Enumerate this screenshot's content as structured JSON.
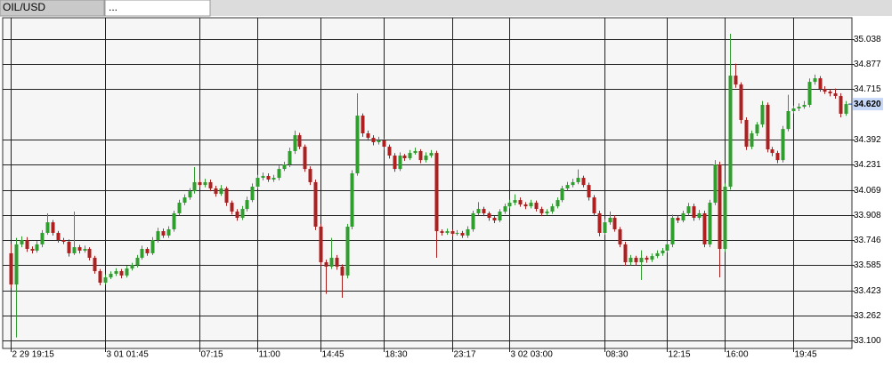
{
  "tabs": [
    "OIL/USD",
    "..."
  ],
  "chart_data": {
    "type": "candlestick",
    "up_color": "#2f9e2f",
    "down_color": "#ae1f1f",
    "grid": true,
    "ylim": [
      33.049,
      35.175
    ],
    "yticks": [
      35.038,
      34.877,
      34.715,
      34.392,
      34.231,
      34.069,
      33.908,
      33.746,
      33.585,
      33.423,
      33.262,
      {
        "value": 33.1,
        "label": "33.100"
      }
    ],
    "xticks": [
      {
        "value": 0,
        "label": "2 29 19:15"
      },
      {
        "value": 18,
        "label": "3 01 01:45"
      },
      {
        "value": 36,
        "label": "07:15"
      },
      {
        "value": 47,
        "label": "11:00"
      },
      {
        "value": 59,
        "label": "14:45"
      },
      {
        "value": 71,
        "label": "18:30"
      },
      {
        "value": 84,
        "label": "23:17"
      },
      {
        "value": 95,
        "label": "3 02 03:00"
      },
      {
        "value": 113,
        "label": "08:30"
      },
      {
        "value": 125,
        "label": "12:15"
      },
      {
        "value": 136,
        "label": "16:00"
      },
      {
        "value": 149,
        "label": "19:45"
      }
    ],
    "last_price": {
      "value": 34.62,
      "label": "34.620"
    },
    "ohlc": [
      [
        33.661,
        33.72,
        33.44,
        33.46
      ],
      [
        33.46,
        33.76,
        33.12,
        33.718
      ],
      [
        33.718,
        33.77,
        33.7,
        33.746
      ],
      [
        33.746,
        33.765,
        33.67,
        33.689
      ],
      [
        33.689,
        33.705,
        33.66,
        33.678
      ],
      [
        33.678,
        33.74,
        33.665,
        33.718
      ],
      [
        33.718,
        33.81,
        33.7,
        33.792
      ],
      [
        33.792,
        33.918,
        33.78,
        33.86
      ],
      [
        33.86,
        33.875,
        33.775,
        33.792
      ],
      [
        33.792,
        33.805,
        33.73,
        33.746
      ],
      [
        33.746,
        33.76,
        33.72,
        33.735
      ],
      [
        33.735,
        33.75,
        33.64,
        33.661
      ],
      [
        33.661,
        33.929,
        33.65,
        33.7
      ],
      [
        33.7,
        33.715,
        33.66,
        33.678
      ],
      [
        33.678,
        33.71,
        33.665,
        33.689
      ],
      [
        33.689,
        33.7,
        33.615,
        33.632
      ],
      [
        33.632,
        33.645,
        33.53,
        33.546
      ],
      [
        33.546,
        33.56,
        33.455,
        33.472
      ],
      [
        33.472,
        33.525,
        33.46,
        33.506
      ],
      [
        33.506,
        33.545,
        33.495,
        33.529
      ],
      [
        33.529,
        33.565,
        33.515,
        33.546
      ],
      [
        33.546,
        33.56,
        33.5,
        33.518
      ],
      [
        33.518,
        33.58,
        33.505,
        33.563
      ],
      [
        33.563,
        33.6,
        33.55,
        33.586
      ],
      [
        33.586,
        33.65,
        33.57,
        33.632
      ],
      [
        33.632,
        33.71,
        33.62,
        33.689
      ],
      [
        33.689,
        33.7,
        33.645,
        33.661
      ],
      [
        33.661,
        33.765,
        33.65,
        33.746
      ],
      [
        33.746,
        33.825,
        33.73,
        33.803
      ],
      [
        33.803,
        33.82,
        33.76,
        33.775
      ],
      [
        33.775,
        33.835,
        33.76,
        33.815
      ],
      [
        33.815,
        33.935,
        33.8,
        33.918
      ],
      [
        33.918,
        34.005,
        33.905,
        33.986
      ],
      [
        33.986,
        34.04,
        33.97,
        34.02
      ],
      [
        34.02,
        34.08,
        34.005,
        34.06
      ],
      [
        34.06,
        34.215,
        34.045,
        34.118
      ],
      [
        34.118,
        34.135,
        34.085,
        34.1
      ],
      [
        34.1,
        34.14,
        34.085,
        34.118
      ],
      [
        34.118,
        34.135,
        34.06,
        34.078
      ],
      [
        34.078,
        34.095,
        34.025,
        34.043
      ],
      [
        34.043,
        34.1,
        34.03,
        34.078
      ],
      [
        34.078,
        34.09,
        33.965,
        33.986
      ],
      [
        33.986,
        34.0,
        33.91,
        33.929
      ],
      [
        33.929,
        33.945,
        33.87,
        33.889
      ],
      [
        33.889,
        33.965,
        33.875,
        33.946
      ],
      [
        33.946,
        34.025,
        33.93,
        34.003
      ],
      [
        34.003,
        34.11,
        33.99,
        34.089
      ],
      [
        34.089,
        34.165,
        34.075,
        34.146
      ],
      [
        34.146,
        34.18,
        34.13,
        34.158
      ],
      [
        34.158,
        34.175,
        34.12,
        34.135
      ],
      [
        34.135,
        34.165,
        34.12,
        34.146
      ],
      [
        34.146,
        34.225,
        34.13,
        34.203
      ],
      [
        34.203,
        34.25,
        34.19,
        34.232
      ],
      [
        34.232,
        34.34,
        34.215,
        34.318
      ],
      [
        34.318,
        34.45,
        34.3,
        34.42
      ],
      [
        34.42,
        34.435,
        34.33,
        34.346
      ],
      [
        34.346,
        34.36,
        34.185,
        34.203
      ],
      [
        34.203,
        34.22,
        34.1,
        34.118
      ],
      [
        34.118,
        34.135,
        33.81,
        33.832
      ],
      [
        33.832,
        33.85,
        33.58,
        33.603
      ],
      [
        33.603,
        33.62,
        33.4,
        33.575
      ],
      [
        33.575,
        33.76,
        33.56,
        33.632
      ],
      [
        33.632,
        33.65,
        33.555,
        33.575
      ],
      [
        33.575,
        33.59,
        33.375,
        33.518
      ],
      [
        33.518,
        33.85,
        33.5,
        33.832
      ],
      [
        33.832,
        34.195,
        33.815,
        34.175
      ],
      [
        34.175,
        34.689,
        34.16,
        34.546
      ],
      [
        34.546,
        34.56,
        34.41,
        34.432
      ],
      [
        34.432,
        34.45,
        34.385,
        34.403
      ],
      [
        34.403,
        34.42,
        34.355,
        34.375
      ],
      [
        34.375,
        34.41,
        34.36,
        34.386
      ],
      [
        34.386,
        34.4,
        34.325,
        34.346
      ],
      [
        34.346,
        34.36,
        34.27,
        34.289
      ],
      [
        34.289,
        34.305,
        34.185,
        34.203
      ],
      [
        34.203,
        34.31,
        34.19,
        34.289
      ],
      [
        34.289,
        34.3,
        34.255,
        34.272
      ],
      [
        34.272,
        34.325,
        34.26,
        34.306
      ],
      [
        34.306,
        34.34,
        34.295,
        34.318
      ],
      [
        34.318,
        34.33,
        34.24,
        34.26
      ],
      [
        34.26,
        34.31,
        34.245,
        34.289
      ],
      [
        34.289,
        34.325,
        34.275,
        34.306
      ],
      [
        34.306,
        34.32,
        33.632,
        33.803
      ],
      [
        33.803,
        33.815,
        33.775,
        33.792
      ],
      [
        33.792,
        33.82,
        33.78,
        33.803
      ],
      [
        33.803,
        33.815,
        33.77,
        33.786
      ],
      [
        33.786,
        33.81,
        33.775,
        33.792
      ],
      [
        33.792,
        33.805,
        33.76,
        33.775
      ],
      [
        33.775,
        33.835,
        33.76,
        33.815
      ],
      [
        33.815,
        33.935,
        33.8,
        33.918
      ],
      [
        33.918,
        33.99,
        33.905,
        33.946
      ],
      [
        33.946,
        33.96,
        33.9,
        33.918
      ],
      [
        33.918,
        33.93,
        33.87,
        33.889
      ],
      [
        33.889,
        33.9,
        33.855,
        33.872
      ],
      [
        33.872,
        33.945,
        33.86,
        33.929
      ],
      [
        33.929,
        33.98,
        33.915,
        33.963
      ],
      [
        33.963,
        34.005,
        33.95,
        33.986
      ],
      [
        33.986,
        34.04,
        33.97,
        34.003
      ],
      [
        34.003,
        34.02,
        33.96,
        33.975
      ],
      [
        33.975,
        33.99,
        33.945,
        33.963
      ],
      [
        33.963,
        34.005,
        33.95,
        33.986
      ],
      [
        33.986,
        34.0,
        33.93,
        33.946
      ],
      [
        33.946,
        33.96,
        33.9,
        33.918
      ],
      [
        33.918,
        33.945,
        33.905,
        33.929
      ],
      [
        33.929,
        33.98,
        33.915,
        33.963
      ],
      [
        33.963,
        34.02,
        33.95,
        34.003
      ],
      [
        34.003,
        34.095,
        33.99,
        34.078
      ],
      [
        34.078,
        34.12,
        34.065,
        34.1
      ],
      [
        34.1,
        34.14,
        34.085,
        34.118
      ],
      [
        34.118,
        34.2,
        34.105,
        34.146
      ],
      [
        34.146,
        34.16,
        34.085,
        34.1
      ],
      [
        34.1,
        34.115,
        34.0,
        34.02
      ],
      [
        34.02,
        34.035,
        33.9,
        33.918
      ],
      [
        33.918,
        33.935,
        33.77,
        33.792
      ],
      [
        33.792,
        33.88,
        33.78,
        33.86
      ],
      [
        33.86,
        33.93,
        33.845,
        33.889
      ],
      [
        33.889,
        33.905,
        33.8,
        33.815
      ],
      [
        33.815,
        33.83,
        33.7,
        33.718
      ],
      [
        33.718,
        33.735,
        33.58,
        33.603
      ],
      [
        33.603,
        33.65,
        33.585,
        33.632
      ],
      [
        33.632,
        33.645,
        33.585,
        33.603
      ],
      [
        33.603,
        33.68,
        33.489,
        33.632
      ],
      [
        33.632,
        33.645,
        33.6,
        33.62
      ],
      [
        33.62,
        33.66,
        33.605,
        33.643
      ],
      [
        33.643,
        33.68,
        33.63,
        33.661
      ],
      [
        33.661,
        33.695,
        33.645,
        33.678
      ],
      [
        33.678,
        33.74,
        33.665,
        33.718
      ],
      [
        33.718,
        33.91,
        33.7,
        33.889
      ],
      [
        33.889,
        33.905,
        33.855,
        33.872
      ],
      [
        33.872,
        33.935,
        33.86,
        33.918
      ],
      [
        33.918,
        33.985,
        33.905,
        33.963
      ],
      [
        33.963,
        33.98,
        33.87,
        33.889
      ],
      [
        33.889,
        33.94,
        33.875,
        33.918
      ],
      [
        33.918,
        33.935,
        33.7,
        33.718
      ],
      [
        33.718,
        34.005,
        33.7,
        33.986
      ],
      [
        33.986,
        34.26,
        33.97,
        34.232
      ],
      [
        34.232,
        34.25,
        33.506,
        33.689
      ],
      [
        33.689,
        34.11,
        33.67,
        34.089
      ],
      [
        34.089,
        35.072,
        34.07,
        34.803
      ],
      [
        34.803,
        34.88,
        34.725,
        34.746
      ],
      [
        34.746,
        34.76,
        34.495,
        34.518
      ],
      [
        34.518,
        34.535,
        34.325,
        34.346
      ],
      [
        34.346,
        34.45,
        34.33,
        34.432
      ],
      [
        34.432,
        34.505,
        34.415,
        34.489
      ],
      [
        34.489,
        34.64,
        34.47,
        34.615
      ],
      [
        34.615,
        34.63,
        34.31,
        34.329
      ],
      [
        34.329,
        34.345,
        34.285,
        34.306
      ],
      [
        34.306,
        34.32,
        34.24,
        34.26
      ],
      [
        34.26,
        34.48,
        34.245,
        34.46
      ],
      [
        34.46,
        34.68,
        34.445,
        34.575
      ],
      [
        34.575,
        34.61,
        34.56,
        34.592
      ],
      [
        34.592,
        34.625,
        34.575,
        34.603
      ],
      [
        34.603,
        34.64,
        34.59,
        34.615
      ],
      [
        34.615,
        34.785,
        34.6,
        34.763
      ],
      [
        34.763,
        34.81,
        34.745,
        34.786
      ],
      [
        34.786,
        34.8,
        34.7,
        34.718
      ],
      [
        34.718,
        34.735,
        34.685,
        34.7
      ],
      [
        34.7,
        34.715,
        34.67,
        34.689
      ],
      [
        34.689,
        34.72,
        34.655,
        34.672
      ],
      [
        34.672,
        34.69,
        34.535,
        34.558
      ],
      [
        34.558,
        34.64,
        34.545,
        34.62
      ]
    ]
  }
}
